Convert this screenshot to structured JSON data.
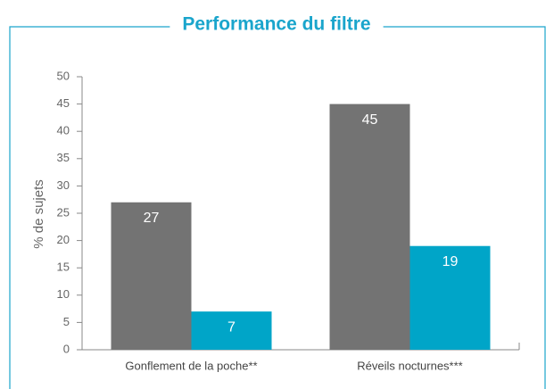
{
  "chart_data": {
    "type": "bar",
    "title": "Performance du filtre",
    "ylabel": "% de sujets",
    "categories": [
      "Gonflement de la poche**",
      "Réveils nocturnes***"
    ],
    "series": [
      {
        "color": "#737373",
        "values": [
          27,
          45
        ]
      },
      {
        "color": "#00a5c8",
        "values": [
          7,
          19
        ]
      }
    ],
    "ylim": [
      0,
      50
    ],
    "yticks": [
      0,
      5,
      10,
      15,
      20,
      25,
      30,
      35,
      40,
      45,
      50
    ],
    "frame_color": "#1aa5cc"
  }
}
